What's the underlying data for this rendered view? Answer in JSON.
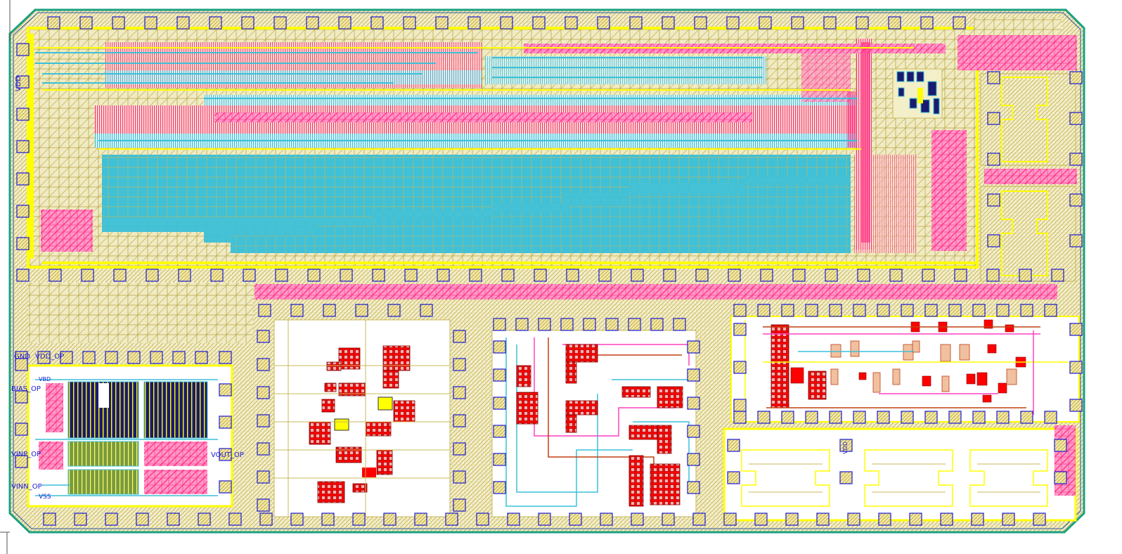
{
  "colors": {
    "background": "#ffffff",
    "metal1": "#ffff00",
    "metal2": "#e8d800",
    "poly": "#ff2a80",
    "active_fill": "#3cc0d8",
    "hatch_olive": "#c8b85a",
    "pad_blue": "#1a1ad6",
    "device_red": "#ff0000",
    "ring_green": "#1aa080",
    "wire_cyan": "#3cc0d8",
    "wire_brown": "#c04010",
    "wire_magenta": "#ff40c0"
  },
  "pin_labels": {
    "vdd_main": "VDD",
    "gnd": "GND",
    "vdd_op": "VDD_OP",
    "vbd": "VBD",
    "bias_op": "BIAS_OP",
    "vinp_op": "VINP_OP",
    "vout_op": "VOUT_OP",
    "vinn_op": "VINN_OP",
    "vss": "VSS",
    "vdd_right": "VDD"
  }
}
